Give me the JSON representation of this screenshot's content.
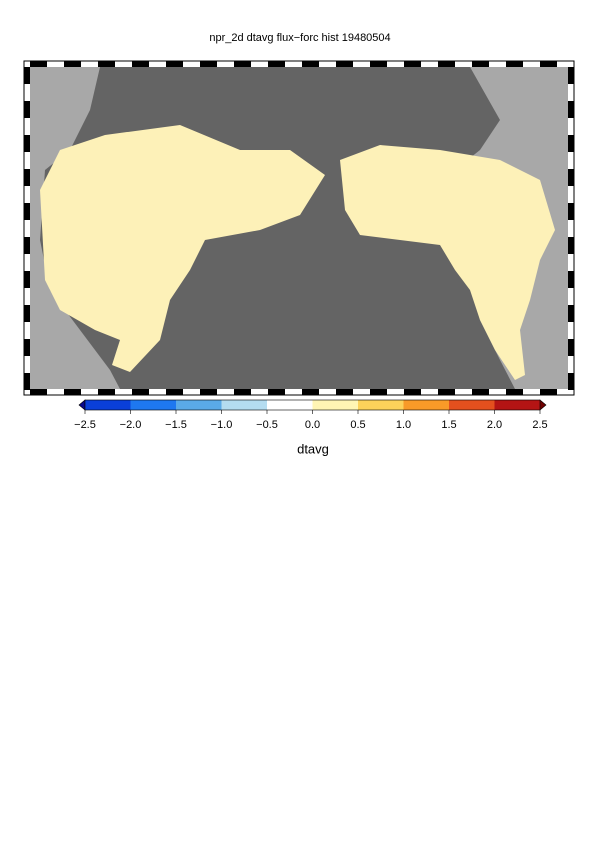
{
  "title": "npr_2d dtavg flux−forc hist 19480504",
  "colorbar": {
    "label": "dtavg",
    "lim": [
      -2.5,
      2.5
    ],
    "ticks": [
      {
        "value": -2.5,
        "label": "−2.5"
      },
      {
        "value": -2.0,
        "label": "−2.0"
      },
      {
        "value": -1.5,
        "label": "−1.5"
      },
      {
        "value": -1.0,
        "label": "−1.0"
      },
      {
        "value": -0.5,
        "label": "−0.5"
      },
      {
        "value": 0.0,
        "label": "0.0"
      },
      0.5,
      {
        "value": 1.0,
        "label": "1.0"
      },
      1.5,
      {
        "value": 2.0,
        "label": "2.0"
      },
      2.5
    ],
    "colors": [
      "#08088c",
      "#0a3fd8",
      "#1e78f0",
      "#5aaae8",
      "#b4dcf0",
      "#ffffff",
      "#fff5b4",
      "#fcd25a",
      "#f89a28",
      "#e4501e",
      "#b41414",
      "#6e0000"
    ]
  }
}
